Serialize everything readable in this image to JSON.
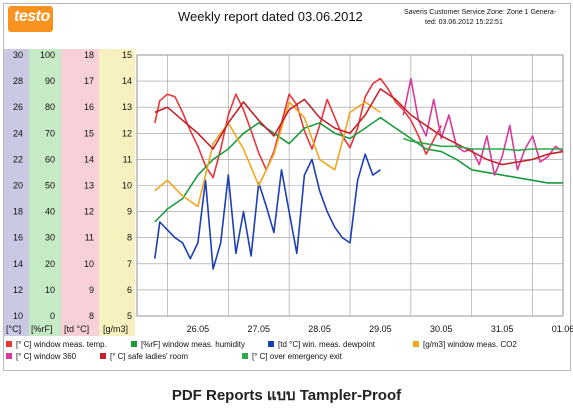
{
  "header": {
    "logo_text": "testo",
    "title": "Weekly report dated 03.06.2012",
    "zone_line": "Saveris Customer Service Zone: Zone 1 Genera-",
    "generated_line": "ted: 03.06.2012 15:22:51"
  },
  "caption": "PDF Reports แบบ Tampler-Proof",
  "colors": {
    "axis_temp": "#c9c9e3",
    "axis_humidity": "#c6e9c6",
    "axis_dewpoint": "#f7d0d8",
    "axis_co2": "#f7f1bf",
    "grid": "#9a9a9a"
  },
  "chart_data": {
    "type": "line",
    "x_ticks": [
      "26.05",
      "27.05",
      "28.05",
      "29.05",
      "30.05",
      "31.05",
      "01.06"
    ],
    "xlim": [
      "25.05 12:00",
      "01.06 12:00"
    ],
    "grid": true,
    "legend_position": "bottom",
    "axes": [
      {
        "unit": "[°C]",
        "ticks": [
          "30",
          "28",
          "26",
          "24",
          "22",
          "20",
          "18",
          "16",
          "14",
          "12",
          "10"
        ],
        "ylim": [
          10,
          30
        ]
      },
      {
        "unit": "[%rF]",
        "ticks": [
          "100",
          "90",
          "80",
          "70",
          "60",
          "50",
          "40",
          "30",
          "20",
          "10",
          "0"
        ],
        "ylim": [
          0,
          100
        ]
      },
      {
        "unit": "[td °C]",
        "ticks": [
          "18",
          "17",
          "16",
          "15",
          "14",
          "13",
          "12",
          "11",
          "10",
          "9",
          "8"
        ],
        "ylim": [
          8,
          18
        ]
      },
      {
        "unit": "[g/m3]",
        "ticks": [
          "15",
          "14",
          "13",
          "12",
          "11",
          "10",
          "9",
          "8",
          "7",
          "6",
          "5"
        ],
        "ylim": [
          5,
          15
        ]
      }
    ],
    "series": [
      {
        "name": "[° C] window meas. temp.",
        "color": "#e8363b",
        "axis": "[°C]",
        "x": [
          "25.05 19:00",
          "25.05 21:00",
          "26.05 00:00",
          "26.05 03:00",
          "26.05 06:00",
          "26.05 09:00",
          "26.05 12:00",
          "26.05 15:00",
          "26.05 18:00",
          "26.05 21:00",
          "27.05 00:00",
          "27.05 03:00",
          "27.05 06:00",
          "27.05 09:00",
          "27.05 12:00",
          "27.05 15:00",
          "27.05 18:00",
          "27.05 21:00",
          "28.05 00:00",
          "28.05 03:00",
          "28.05 06:00",
          "28.05 09:00",
          "28.05 12:00",
          "28.05 15:00",
          "28.05 18:00",
          "28.05 21:00",
          "29.05 00:00",
          "29.05 03:00",
          "29.05 06:00",
          "29.05 09:00",
          "29.05 12:00",
          "29.05 15:00",
          "29.05 18:00",
          "29.05 21:00",
          "30.05 00:00",
          "30.05 03:00",
          "30.05 06:00",
          "30.05 09:00",
          "30.05 12:00"
        ],
        "y": [
          24.8,
          26.5,
          27.0,
          26.8,
          25.6,
          24.2,
          23.0,
          21.5,
          20.6,
          22.8,
          25.4,
          27.0,
          25.8,
          24.2,
          22.5,
          21.2,
          22.6,
          24.8,
          27.0,
          26.2,
          24.2,
          22.8,
          24.6,
          26.6,
          25.2,
          23.8,
          22.9,
          24.4,
          26.8,
          27.8,
          28.2,
          27.4,
          26.4,
          25.8,
          25.0,
          23.8,
          22.4,
          23.5,
          24.6
        ]
      },
      {
        "name": "[%rF] window meas. humidity",
        "color": "#1a9b3c",
        "axis": "[%rF]",
        "x": [
          "25.05 19:00",
          "26.05 00:00",
          "26.05 06:00",
          "26.05 12:00",
          "26.05 18:00",
          "27.05 00:00",
          "27.05 06:00",
          "27.05 12:00",
          "27.05 18:00",
          "28.05 00:00",
          "28.05 06:00",
          "28.05 12:00",
          "28.05 18:00",
          "29.05 00:00",
          "29.05 06:00",
          "29.05 12:00",
          "29.05 18:00",
          "30.05 00:00",
          "30.05 06:00",
          "30.05 12:00",
          "30.05 18:00",
          "31.05 00:00",
          "31.05 06:00",
          "31.05 12:00",
          "31.05 18:00",
          "01.06 00:00",
          "01.06 06:00",
          "01.06 12:00"
        ],
        "y": [
          36,
          41,
          45,
          54,
          60,
          64,
          70,
          74,
          70,
          66,
          72,
          74,
          70,
          68,
          72,
          76,
          72,
          68,
          64,
          63,
          60,
          56,
          55,
          54,
          53,
          52,
          51,
          51
        ]
      },
      {
        "name": "[td °C] win. meas. dewpoint",
        "color": "#1c3fb4",
        "axis": "[td °C]",
        "x": [
          "25.05 19:00",
          "25.05 21:00",
          "26.05 00:00",
          "26.05 03:00",
          "26.05 06:00",
          "26.05 09:00",
          "26.05 12:00",
          "26.05 15:00",
          "26.05 18:00",
          "26.05 21:00",
          "27.05 00:00",
          "27.05 03:00",
          "27.05 06:00",
          "27.05 09:00",
          "27.05 12:00",
          "27.05 15:00",
          "27.05 18:00",
          "27.05 21:00",
          "28.05 00:00",
          "28.05 03:00",
          "28.05 06:00",
          "28.05 09:00",
          "28.05 12:00",
          "28.05 15:00",
          "28.05 18:00",
          "28.05 21:00",
          "29.05 00:00",
          "29.05 03:00",
          "29.05 06:00",
          "29.05 09:00",
          "29.05 12:00"
        ],
        "y": [
          10.2,
          11.6,
          11.3,
          11.0,
          10.8,
          10.2,
          10.8,
          13.2,
          9.8,
          10.8,
          13.4,
          10.4,
          12.0,
          10.3,
          13.1,
          12.2,
          11.2,
          13.6,
          12.0,
          10.4,
          13.4,
          14.0,
          12.8,
          12.0,
          11.4,
          11.0,
          10.8,
          13.2,
          14.2,
          13.4,
          13.6
        ]
      },
      {
        "name": "[g/m3] window meas. CO2",
        "color": "#f2a61e",
        "axis": "[g/m3]",
        "x": [
          "25.05 19:00",
          "26.05 00:00",
          "26.05 06:00",
          "26.05 12:00",
          "26.05 18:00",
          "27.05 00:00",
          "27.05 06:00",
          "27.05 12:00",
          "27.05 18:00",
          "28.05 00:00",
          "28.05 06:00",
          "28.05 12:00",
          "28.05 18:00",
          "29.05 00:00",
          "29.05 06:00",
          "29.05 12:00"
        ],
        "y": [
          9.8,
          10.2,
          9.6,
          9.2,
          11.6,
          12.4,
          11.4,
          10.0,
          11.2,
          13.2,
          12.6,
          11.0,
          10.6,
          12.8,
          13.2,
          12.8
        ]
      },
      {
        "name": "[° C] window 360",
        "color": "#d83a9c",
        "axis": "[°C]",
        "x": [
          "29.05 21:00",
          "30.05 00:00",
          "30.05 03:00",
          "30.05 06:00",
          "30.05 09:00",
          "30.05 12:00",
          "30.05 15:00",
          "30.05 18:00",
          "30.05 21:00",
          "31.05 00:00",
          "31.05 03:00",
          "31.05 06:00",
          "31.05 09:00",
          "31.05 12:00",
          "31.05 15:00",
          "31.05 18:00",
          "31.05 21:00",
          "01.06 00:00",
          "01.06 03:00",
          "01.06 06:00",
          "01.06 09:00",
          "01.06 12:00"
        ],
        "y": [
          25.4,
          28.2,
          25.0,
          23.8,
          26.6,
          23.6,
          25.4,
          23.0,
          22.6,
          22.8,
          21.6,
          23.8,
          20.8,
          22.2,
          24.6,
          21.2,
          22.8,
          23.8,
          21.8,
          22.2,
          23.0,
          22.6
        ]
      },
      {
        "name": "[° C] safe ladies' room",
        "color": "#c2232a",
        "axis": "[°C]",
        "x": [
          "25.05 19:00",
          "26.05 00:00",
          "26.05 06:00",
          "26.05 12:00",
          "26.05 18:00",
          "27.05 00:00",
          "27.05 06:00",
          "27.05 12:00",
          "27.05 18:00",
          "28.05 00:00",
          "28.05 06:00",
          "28.05 12:00",
          "28.05 18:00",
          "29.05 00:00",
          "29.05 06:00",
          "29.05 12:00",
          "29.05 18:00",
          "30.05 00:00",
          "30.05 06:00",
          "30.05 12:00",
          "30.05 18:00",
          "31.05 00:00",
          "31.05 06:00",
          "31.05 12:00",
          "31.05 18:00",
          "01.06 00:00",
          "01.06 06:00",
          "01.06 12:00"
        ],
        "y": [
          25.6,
          26.0,
          25.0,
          24.0,
          22.8,
          24.8,
          26.4,
          25.0,
          23.8,
          25.8,
          26.6,
          25.2,
          24.4,
          24.0,
          25.4,
          27.4,
          26.6,
          25.4,
          24.6,
          23.8,
          23.2,
          22.6,
          22.0,
          21.6,
          21.8,
          22.0,
          22.4,
          22.6
        ]
      },
      {
        "name": "[° C] over emergency exit",
        "color": "#2ea84a",
        "axis": "[°C]",
        "x": [
          "29.05 21:00",
          "30.05 00:00",
          "30.05 06:00",
          "30.05 12:00",
          "30.05 18:00",
          "31.05 00:00",
          "31.05 06:00",
          "31.05 12:00",
          "31.05 18:00",
          "01.06 00:00",
          "01.06 06:00",
          "01.06 12:00"
        ],
        "y": [
          23.6,
          23.4,
          23.2,
          23.0,
          23.0,
          22.8,
          22.8,
          22.8,
          22.7,
          22.8,
          22.8,
          22.8
        ]
      }
    ]
  }
}
